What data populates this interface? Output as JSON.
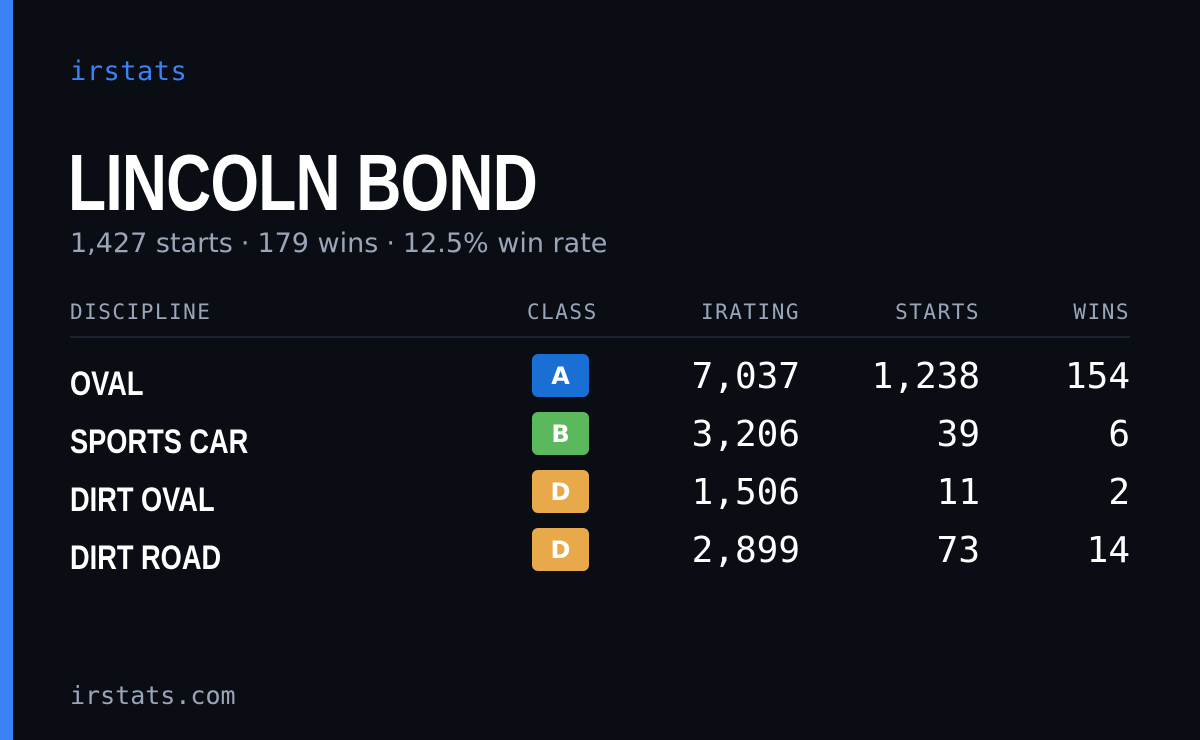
{
  "brand": "irstats",
  "player": {
    "name": "LINCOLN BOND",
    "starts": "1,427 starts",
    "wins": "179 wins",
    "win_rate": "12.5% win rate",
    "separator": "·"
  },
  "table": {
    "headers": {
      "discipline": "DISCIPLINE",
      "class": "CLASS",
      "irating": "IRATING",
      "starts": "STARTS",
      "wins": "WINS"
    },
    "rows": [
      {
        "discipline": "OVAL",
        "class": "A",
        "class_color": "#1a6fd4",
        "irating": "7,037",
        "starts": "1,238",
        "wins": "154"
      },
      {
        "discipline": "SPORTS CAR",
        "class": "B",
        "class_color": "#5cb85c",
        "irating": "3,206",
        "starts": "39",
        "wins": "6"
      },
      {
        "discipline": "DIRT OVAL",
        "class": "D",
        "class_color": "#e8a94a",
        "irating": "1,506",
        "starts": "11",
        "wins": "2"
      },
      {
        "discipline": "DIRT ROAD",
        "class": "D",
        "class_color": "#e8a94a",
        "irating": "2,899",
        "starts": "73",
        "wins": "14"
      }
    ]
  },
  "footer": "irstats.com",
  "colors": {
    "background": "#0a0d14",
    "accent": "#3b82f6",
    "muted_text": "#9aa6b8"
  }
}
